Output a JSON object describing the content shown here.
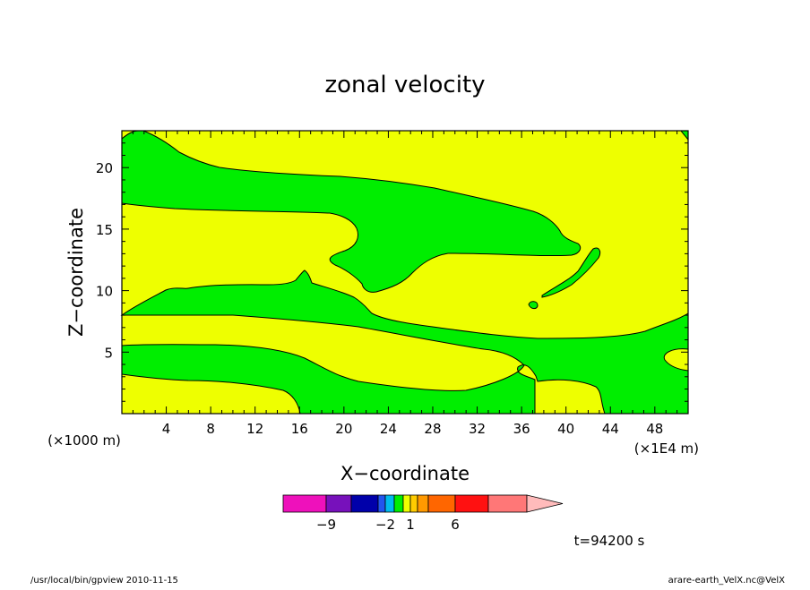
{
  "chart_data": {
    "type": "heatmap",
    "title": "zonal velocity",
    "xlabel": "X−coordinate",
    "ylabel": "Z−coordinate",
    "x_unit_label": "(×1E4 m)",
    "y_unit_label": "(×1000 m)",
    "xlim": [
      0,
      51
    ],
    "ylim": [
      0,
      23
    ],
    "xticks": [
      4,
      8,
      12,
      16,
      20,
      24,
      28,
      32,
      36,
      40,
      44,
      48
    ],
    "yticks": [
      5,
      10,
      15,
      20
    ],
    "time_label": "t=94200 s",
    "regions": [
      {
        "class": "yellow",
        "interval": [
          1,
          2
        ],
        "color": "#eeff00"
      },
      {
        "class": "green",
        "interval": [
          -1,
          0
        ],
        "color": "#00ee00"
      }
    ],
    "colorbar": {
      "colors": [
        "#ee11bb",
        "#7711bb",
        "#0000aa",
        "#2255ee",
        "#00bbee",
        "#00ee00",
        "#eeff00",
        "#ffcc00",
        "#ff9900",
        "#ff6600",
        "#ff1111",
        "#ff7777",
        "#ffbbbb"
      ],
      "tick_labels": [
        {
          "text": "−9",
          "value": -9
        },
        {
          "text": "−2",
          "value": -2
        },
        {
          "text": "1",
          "value": 1
        },
        {
          "text": "6",
          "value": 6
        }
      ]
    }
  },
  "footer": {
    "left": "/usr/local/bin/gpview  2010-11-15",
    "right": "arare-earth_VelX.nc@VelX"
  }
}
